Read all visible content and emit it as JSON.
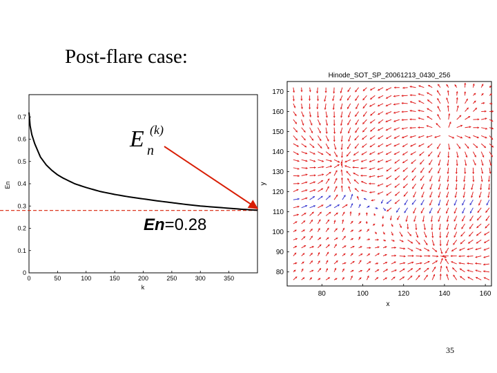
{
  "slide": {
    "title": "Post-flare case:",
    "page_number": "35"
  },
  "annotations": {
    "energy_symbol_base": "E",
    "energy_symbol_sub": "n",
    "energy_symbol_sup": "(k)",
    "energy_label_bold": "En",
    "energy_label_value": "=0.28",
    "arrow_color": "#d81e05",
    "dashed_line_color": "#d81e05"
  },
  "chart_data": [
    {
      "type": "line",
      "title": "",
      "xlabel": "k",
      "ylabel": "En",
      "xlim": [
        0,
        400
      ],
      "ylim": [
        0,
        0.8
      ],
      "xticks": [
        "0",
        "50",
        "100",
        "150",
        "200",
        "250",
        "300",
        "350"
      ],
      "yticks": [
        "0",
        "0.1",
        "0.2",
        "0.3",
        "0.4",
        "0.5",
        "0.6",
        "0.7"
      ],
      "series": [
        {
          "color": "#000000",
          "x": [
            0,
            2,
            5,
            10,
            20,
            30,
            40,
            50,
            60,
            80,
            100,
            125,
            150,
            175,
            200,
            225,
            250,
            275,
            300,
            325,
            350,
            375,
            400
          ],
          "y": [
            0.72,
            0.66,
            0.62,
            0.58,
            0.52,
            0.485,
            0.46,
            0.44,
            0.425,
            0.4,
            0.383,
            0.365,
            0.352,
            0.341,
            0.332,
            0.323,
            0.315,
            0.307,
            0.3,
            0.295,
            0.29,
            0.285,
            0.281
          ]
        }
      ],
      "reference_line_y": 0.28
    },
    {
      "type": "vector_field",
      "title": "Hinode_SOT_SP_20061213_0430_256",
      "xlabel": "x",
      "ylabel": "y",
      "xlim": [
        63,
        163
      ],
      "ylim": [
        73,
        175
      ],
      "xticks": [
        "80",
        "100",
        "120",
        "140",
        "160"
      ],
      "yticks": [
        "80",
        "90",
        "100",
        "110",
        "120",
        "130",
        "140",
        "150",
        "160",
        "170"
      ],
      "colors": [
        "#e02020",
        "#3a3ad0"
      ]
    }
  ]
}
